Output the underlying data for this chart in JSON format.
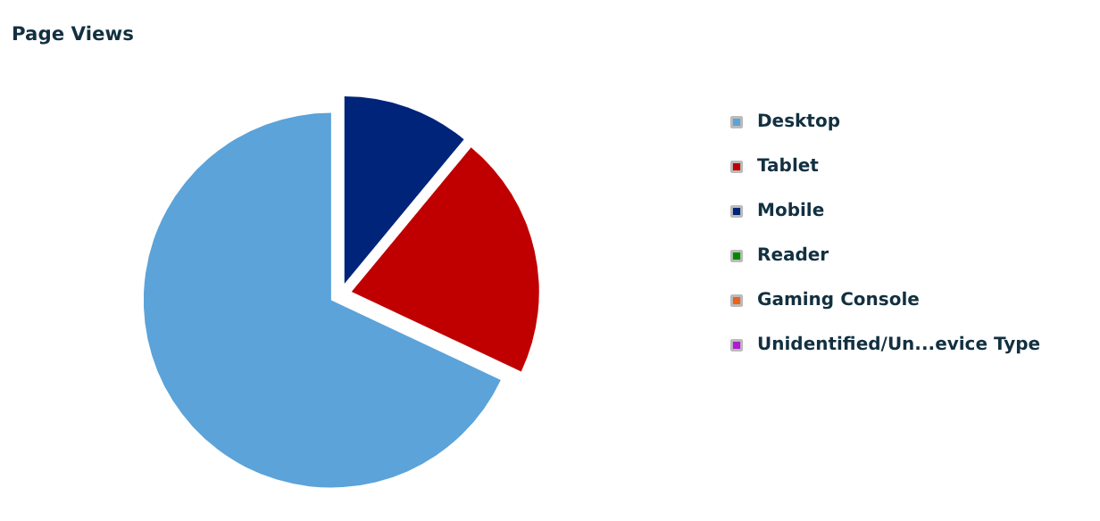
{
  "chart_data": {
    "type": "pie",
    "title": "Page Views",
    "categories": [
      "Desktop",
      "Tablet",
      "Mobile",
      "Reader",
      "Gaming Console",
      "Unidentified/Un...evice Type"
    ],
    "values": [
      68,
      21,
      11,
      0,
      0,
      0
    ],
    "colors": [
      "#5ba3d9",
      "#c00000",
      "#00247a",
      "#008a00",
      "#e8641e",
      "#b01ad0"
    ],
    "legend": "right"
  }
}
